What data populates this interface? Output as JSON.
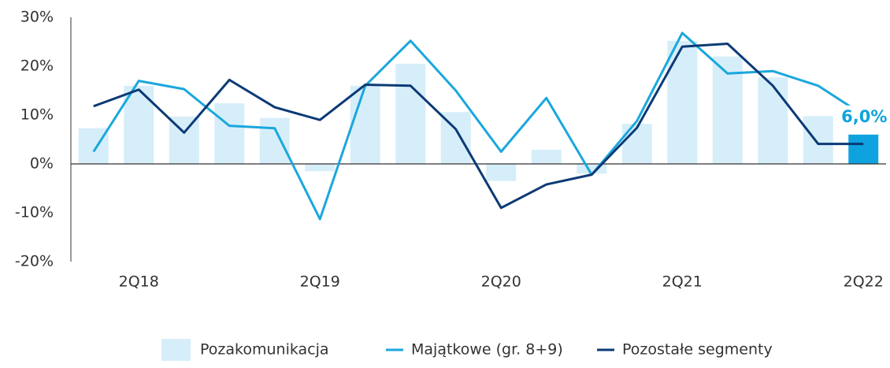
{
  "chart_data": {
    "type": "bar_line",
    "categories": [
      null,
      "2Q18",
      null,
      null,
      null,
      "2Q19",
      null,
      null,
      null,
      "2Q20",
      null,
      null,
      null,
      "2Q21",
      null,
      null,
      null,
      "2Q22"
    ],
    "series": [
      {
        "name": "Pozakomunikacja",
        "kind": "bar",
        "color": "#d6eef9",
        "highlight_color": "#0ea3de",
        "values": [
          7.3,
          16,
          9.7,
          12.4,
          9.4,
          -1.5,
          16,
          20.5,
          10.6,
          -3.5,
          2.9,
          -2,
          8.2,
          25.2,
          22,
          17.7,
          9.8,
          6.0
        ],
        "value_labels": [
          null,
          null,
          null,
          null,
          null,
          null,
          null,
          null,
          null,
          null,
          null,
          null,
          null,
          null,
          null,
          null,
          null,
          "6,0%"
        ]
      },
      {
        "name": "Majątkowe (gr. 8+9)",
        "kind": "line",
        "color": "#1aa7dd",
        "values": [
          2.5,
          17,
          15.3,
          7.8,
          7.3,
          -11.3,
          16,
          25.2,
          15,
          2.5,
          13.5,
          -2.2,
          8.8,
          26.8,
          18.5,
          19,
          16,
          10
        ]
      },
      {
        "name": "Pozostałe segmenty",
        "kind": "line",
        "color": "#0b3a75",
        "values": [
          11.8,
          15.2,
          6.4,
          17.2,
          11.6,
          9,
          16.2,
          16,
          7.1,
          -9,
          -4.2,
          -2.2,
          7.4,
          24,
          24.6,
          16,
          4.1,
          4.1
        ]
      }
    ],
    "ylim": [
      -20,
      30
    ],
    "yticks": [
      {
        "value": -20,
        "label": "-20%"
      },
      {
        "value": -10,
        "label": "-10%"
      },
      {
        "value": 0,
        "label": "0%"
      },
      {
        "value": 10,
        "label": "10%"
      },
      {
        "value": 20,
        "label": "20%"
      },
      {
        "value": 30,
        "label": "30%"
      }
    ],
    "legend": "bottom"
  }
}
